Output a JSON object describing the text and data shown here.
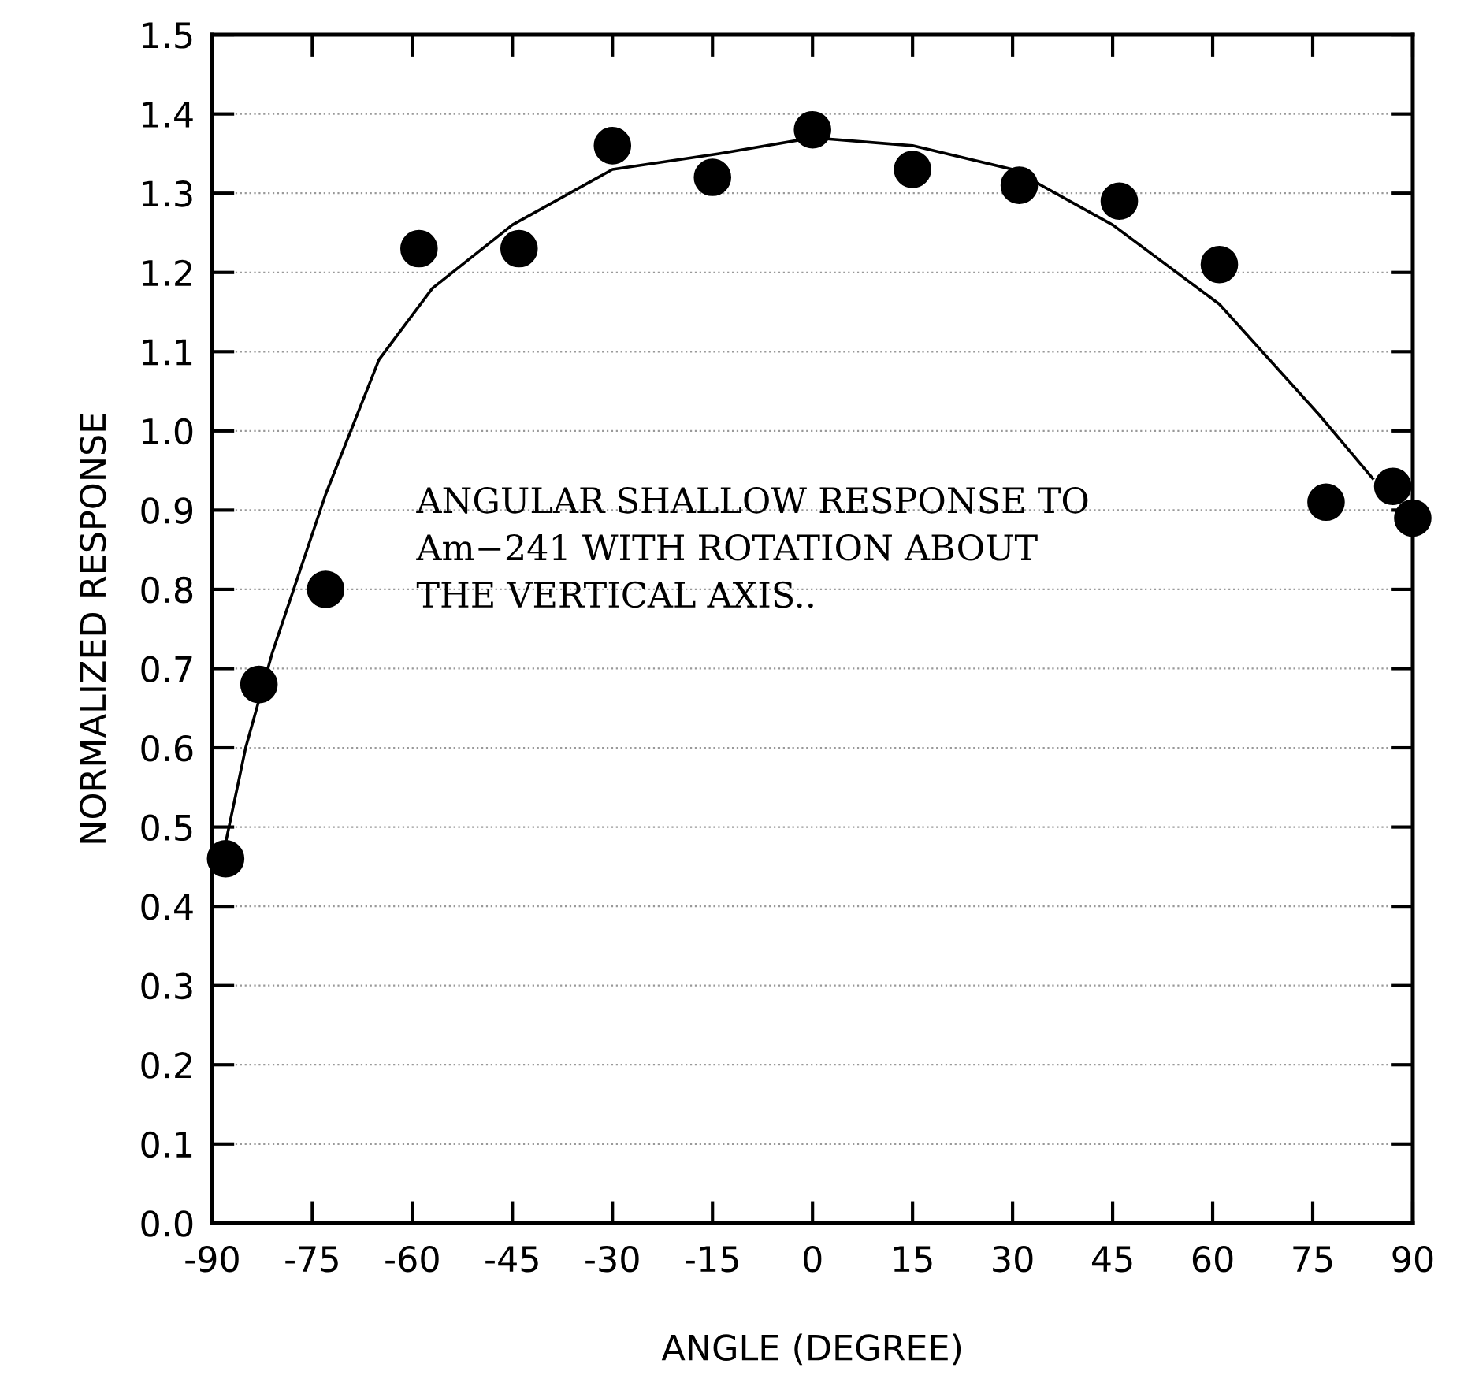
{
  "chart_data": {
    "type": "scatter",
    "xlabel": "ANGLE (DEGREE)",
    "ylabel": "NORMALIZED RESPONSE",
    "annotations": [
      "ANGULAR SHALLOW RESPONSE TO\nAm−241 WITH ROTATION ABOUT\nTHE VERTICAL AXIS.."
    ],
    "series": [
      {
        "color": "#000000",
        "marker": "circle",
        "x": [
          -88,
          -83,
          -73,
          -59,
          -44,
          -30,
          -15,
          0,
          15,
          31,
          46,
          61,
          77,
          87,
          90
        ],
        "values": [
          0.46,
          0.68,
          0.8,
          1.23,
          1.23,
          1.36,
          1.32,
          1.38,
          1.33,
          1.31,
          1.29,
          1.21,
          0.91,
          0.93,
          0.89
        ]
      },
      {
        "type": "line",
        "color": "#000000",
        "marker": "none",
        "line_style": "solid",
        "x": [
          -88,
          -85,
          -81,
          -73,
          -65,
          -57,
          -45,
          -30,
          -14,
          0,
          15,
          30,
          45,
          61,
          76,
          84
        ],
        "values": [
          0.48,
          0.6,
          0.72,
          0.92,
          1.09,
          1.18,
          1.26,
          1.33,
          1.35,
          1.37,
          1.36,
          1.33,
          1.26,
          1.16,
          1.02,
          0.94
        ]
      }
    ],
    "xlim": [
      -90,
      90
    ],
    "xticks": [
      -90,
      -75,
      -60,
      -45,
      -30,
      -15,
      0,
      15,
      30,
      45,
      60,
      75,
      90
    ],
    "ylim": [
      0,
      1.5
    ],
    "yticks": [
      {
        "value": 0,
        "label": "0.0"
      },
      0.1,
      0.2,
      0.3,
      0.4,
      0.5,
      0.6,
      0.7,
      0.8,
      0.9,
      {
        "value": 1.0,
        "label": "1.0"
      },
      1.1,
      1.2,
      1.3,
      1.4,
      1.5
    ],
    "grid": "y",
    "legend": false
  }
}
